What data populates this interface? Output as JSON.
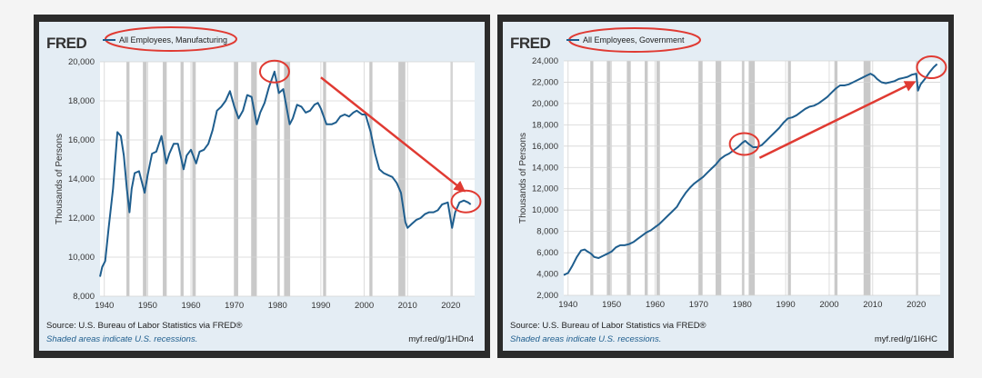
{
  "chart_data": [
    {
      "type": "line",
      "logo": "FRED",
      "series": [
        {
          "name": "All Employees, Manufacturing",
          "color": "#1f5e8e",
          "points": [
            [
              1939.0,
              9000
            ],
            [
              1939.5,
              9500
            ],
            [
              1940.2,
              9800
            ],
            [
              1941.0,
              11500
            ],
            [
              1942.0,
              13500
            ],
            [
              1943.0,
              16400
            ],
            [
              1943.8,
              16200
            ],
            [
              1944.5,
              15200
            ],
            [
              1945.2,
              13500
            ],
            [
              1945.8,
              12300
            ],
            [
              1946.3,
              13500
            ],
            [
              1947.0,
              14300
            ],
            [
              1948.0,
              14400
            ],
            [
              1949.3,
              13300
            ],
            [
              1950.0,
              14200
            ],
            [
              1951.0,
              15300
            ],
            [
              1952.0,
              15400
            ],
            [
              1953.2,
              16200
            ],
            [
              1954.3,
              14800
            ],
            [
              1955.0,
              15300
            ],
            [
              1956.0,
              15800
            ],
            [
              1957.0,
              15800
            ],
            [
              1958.3,
              14500
            ],
            [
              1959.0,
              15200
            ],
            [
              1960.0,
              15500
            ],
            [
              1961.2,
              14800
            ],
            [
              1962.0,
              15400
            ],
            [
              1963.0,
              15500
            ],
            [
              1964.0,
              15800
            ],
            [
              1965.0,
              16500
            ],
            [
              1966.0,
              17500
            ],
            [
              1967.0,
              17700
            ],
            [
              1968.0,
              18000
            ],
            [
              1969.0,
              18500
            ],
            [
              1970.0,
              17700
            ],
            [
              1971.0,
              17100
            ],
            [
              1972.0,
              17500
            ],
            [
              1973.0,
              18300
            ],
            [
              1974.0,
              18200
            ],
            [
              1975.2,
              16800
            ],
            [
              1976.0,
              17400
            ],
            [
              1977.0,
              17900
            ],
            [
              1978.0,
              18700
            ],
            [
              1979.3,
              19500
            ],
            [
              1980.3,
              18400
            ],
            [
              1981.3,
              18600
            ],
            [
              1982.8,
              16800
            ],
            [
              1983.5,
              17100
            ],
            [
              1984.5,
              17800
            ],
            [
              1985.5,
              17700
            ],
            [
              1986.5,
              17400
            ],
            [
              1987.5,
              17500
            ],
            [
              1988.5,
              17800
            ],
            [
              1989.3,
              17900
            ],
            [
              1990.0,
              17600
            ],
            [
              1991.3,
              16800
            ],
            [
              1992.5,
              16800
            ],
            [
              1993.5,
              16900
            ],
            [
              1994.5,
              17200
            ],
            [
              1995.5,
              17300
            ],
            [
              1996.5,
              17200
            ],
            [
              1997.5,
              17400
            ],
            [
              1998.3,
              17500
            ],
            [
              1999.5,
              17300
            ],
            [
              2000.3,
              17300
            ],
            [
              2001.5,
              16400
            ],
            [
              2002.5,
              15300
            ],
            [
              2003.5,
              14500
            ],
            [
              2004.5,
              14300
            ],
            [
              2005.5,
              14200
            ],
            [
              2006.5,
              14100
            ],
            [
              2007.5,
              13800
            ],
            [
              2008.5,
              13300
            ],
            [
              2009.5,
              11800
            ],
            [
              2010.0,
              11500
            ],
            [
              2011.0,
              11700
            ],
            [
              2012.0,
              11900
            ],
            [
              2013.0,
              12000
            ],
            [
              2014.0,
              12200
            ],
            [
              2015.0,
              12300
            ],
            [
              2016.0,
              12300
            ],
            [
              2017.0,
              12400
            ],
            [
              2018.0,
              12700
            ],
            [
              2019.3,
              12800
            ],
            [
              2020.3,
              11500
            ],
            [
              2021.0,
              12300
            ],
            [
              2022.0,
              12800
            ],
            [
              2023.0,
              12900
            ],
            [
              2024.0,
              12800
            ],
            [
              2024.6,
              12700
            ]
          ]
        }
      ],
      "x_ticks": [
        "1940",
        "1950",
        "1960",
        "1970",
        "1980",
        "1990",
        "2000",
        "2010",
        "2020"
      ],
      "y_ticks": [
        "8,000",
        "10,000",
        "12,000",
        "14,000",
        "16,000",
        "18,000",
        "20,000"
      ],
      "xlim": [
        1939,
        2025.5
      ],
      "ylim": [
        8000,
        20000
      ],
      "ylabel": "Thousands of Persons",
      "recessions": [
        [
          1945.1,
          1945.8
        ],
        [
          1948.9,
          1949.8
        ],
        [
          1953.5,
          1954.4
        ],
        [
          1957.6,
          1958.3
        ],
        [
          1960.3,
          1961.1
        ],
        [
          1969.9,
          1970.9
        ],
        [
          1973.9,
          1975.2
        ],
        [
          1980.0,
          1980.5
        ],
        [
          1981.5,
          1982.9
        ],
        [
          1990.5,
          1991.2
        ],
        [
          2001.2,
          2001.9
        ],
        [
          2007.9,
          2009.5
        ],
        [
          2020.1,
          2020.4
        ]
      ],
      "annotations": [
        {
          "type": "ellipse",
          "around": "legend"
        },
        {
          "type": "ellipse",
          "around": [
            1979.3,
            19500
          ]
        },
        {
          "type": "ellipse",
          "around": [
            2023.5,
            12850
          ]
        },
        {
          "type": "arrow",
          "from": [
            1990,
            19200
          ],
          "to": [
            2023,
            13400
          ]
        }
      ],
      "grid": true,
      "source": "Source: U.S. Bureau of Labor Statistics via FRED®",
      "note": "Shaded areas indicate U.S. recessions.",
      "link": "myf.red/g/1HDn4"
    },
    {
      "type": "line",
      "logo": "FRED",
      "series": [
        {
          "name": "All Employees, Government",
          "color": "#1f5e8e",
          "points": [
            [
              1939.0,
              3900
            ],
            [
              1940.0,
              4100
            ],
            [
              1941.0,
              4800
            ],
            [
              1942.0,
              5600
            ],
            [
              1943.0,
              6200
            ],
            [
              1943.8,
              6300
            ],
            [
              1944.5,
              6100
            ],
            [
              1945.3,
              5900
            ],
            [
              1946.0,
              5600
            ],
            [
              1947.0,
              5500
            ],
            [
              1948.0,
              5700
            ],
            [
              1949.0,
              5900
            ],
            [
              1950.0,
              6100
            ],
            [
              1951.0,
              6500
            ],
            [
              1952.0,
              6700
            ],
            [
              1953.0,
              6700
            ],
            [
              1954.0,
              6800
            ],
            [
              1955.0,
              7000
            ],
            [
              1956.0,
              7300
            ],
            [
              1957.0,
              7600
            ],
            [
              1958.0,
              7900
            ],
            [
              1959.0,
              8100
            ],
            [
              1960.0,
              8400
            ],
            [
              1961.0,
              8700
            ],
            [
              1962.0,
              9100
            ],
            [
              1963.0,
              9500
            ],
            [
              1964.0,
              9900
            ],
            [
              1965.0,
              10300
            ],
            [
              1966.0,
              11000
            ],
            [
              1967.0,
              11600
            ],
            [
              1968.0,
              12100
            ],
            [
              1969.0,
              12500
            ],
            [
              1970.0,
              12800
            ],
            [
              1971.0,
              13100
            ],
            [
              1972.0,
              13500
            ],
            [
              1973.0,
              13900
            ],
            [
              1974.0,
              14300
            ],
            [
              1975.0,
              14800
            ],
            [
              1976.0,
              15100
            ],
            [
              1977.0,
              15300
            ],
            [
              1978.0,
              15600
            ],
            [
              1979.0,
              15900
            ],
            [
              1980.0,
              16300
            ],
            [
              1980.7,
              16500
            ],
            [
              1981.5,
              16200
            ],
            [
              1982.5,
              15900
            ],
            [
              1983.5,
              15900
            ],
            [
              1984.5,
              16100
            ],
            [
              1985.5,
              16500
            ],
            [
              1986.5,
              16900
            ],
            [
              1987.5,
              17300
            ],
            [
              1988.5,
              17700
            ],
            [
              1989.5,
              18200
            ],
            [
              1990.5,
              18600
            ],
            [
              1991.5,
              18700
            ],
            [
              1992.5,
              18900
            ],
            [
              1993.5,
              19200
            ],
            [
              1994.5,
              19500
            ],
            [
              1995.5,
              19700
            ],
            [
              1996.5,
              19800
            ],
            [
              1997.5,
              20000
            ],
            [
              1998.5,
              20300
            ],
            [
              1999.5,
              20600
            ],
            [
              2000.5,
              21000
            ],
            [
              2001.5,
              21400
            ],
            [
              2002.5,
              21700
            ],
            [
              2003.5,
              21700
            ],
            [
              2004.5,
              21800
            ],
            [
              2005.5,
              22000
            ],
            [
              2006.5,
              22200
            ],
            [
              2007.5,
              22400
            ],
            [
              2008.5,
              22600
            ],
            [
              2009.5,
              22800
            ],
            [
              2010.3,
              22600
            ],
            [
              2011.0,
              22300
            ],
            [
              2012.0,
              22000
            ],
            [
              2013.0,
              21900
            ],
            [
              2014.0,
              22000
            ],
            [
              2015.0,
              22100
            ],
            [
              2016.0,
              22300
            ],
            [
              2017.0,
              22400
            ],
            [
              2018.0,
              22500
            ],
            [
              2019.0,
              22700
            ],
            [
              2020.0,
              22800
            ],
            [
              2020.4,
              21200
            ],
            [
              2021.0,
              21800
            ],
            [
              2022.0,
              22300
            ],
            [
              2023.0,
              22900
            ],
            [
              2024.0,
              23400
            ],
            [
              2024.8,
              23700
            ]
          ]
        }
      ],
      "x_ticks": [
        "1940",
        "1950",
        "1960",
        "1970",
        "1980",
        "1990",
        "2000",
        "2010",
        "2020"
      ],
      "y_ticks": [
        "2,000",
        "4,000",
        "6,000",
        "8,000",
        "10,000",
        "12,000",
        "14,000",
        "16,000",
        "18,000",
        "20,000",
        "22,000",
        "24,000"
      ],
      "xlim": [
        1939,
        2025.5
      ],
      "ylim": [
        2000,
        24000
      ],
      "ylabel": "Thousands of Persons",
      "recessions": [
        [
          1945.1,
          1945.8
        ],
        [
          1948.9,
          1949.8
        ],
        [
          1953.5,
          1954.4
        ],
        [
          1957.6,
          1958.3
        ],
        [
          1960.3,
          1961.1
        ],
        [
          1969.9,
          1970.9
        ],
        [
          1973.9,
          1975.2
        ],
        [
          1980.0,
          1980.5
        ],
        [
          1981.5,
          1982.9
        ],
        [
          1990.5,
          1991.2
        ],
        [
          2001.2,
          2001.9
        ],
        [
          2007.9,
          2009.5
        ],
        [
          2020.1,
          2020.4
        ]
      ],
      "annotations": [
        {
          "type": "ellipse",
          "around": "legend"
        },
        {
          "type": "ellipse",
          "around": [
            1980.5,
            16200
          ]
        },
        {
          "type": "ellipse",
          "around": [
            2023.5,
            23400
          ]
        },
        {
          "type": "arrow",
          "from": [
            1984,
            14900
          ],
          "to": [
            2019.5,
            22000
          ]
        }
      ],
      "grid": true,
      "source": "Source: U.S. Bureau of Labor Statistics via FRED®",
      "note": "Shaded areas indicate U.S. recessions.",
      "link": "myf.red/g/1I6HC"
    }
  ],
  "colors": {
    "line": "#1f5e8e",
    "annotation": "#e03a32",
    "recession": "#c9c9c9",
    "card": "#e4edf4",
    "plot": "#ffffff"
  }
}
